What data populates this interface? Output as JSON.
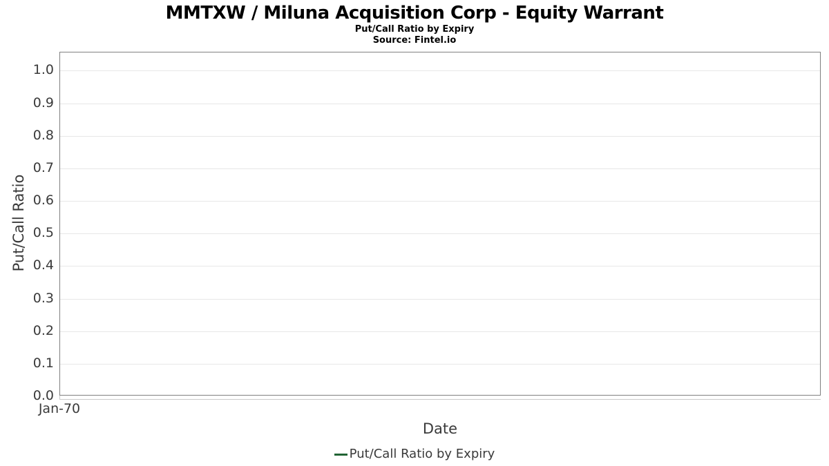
{
  "chart_data": {
    "type": "line",
    "title": "MMTXW / Miluna Acquisition Corp - Equity Warrant",
    "subtitle": "Put/Call Ratio by Expiry",
    "source": "Source: Fintel.io",
    "xlabel": "Date",
    "ylabel": "Put/Call Ratio",
    "x_tick_labels": [
      "Jan-70"
    ],
    "y_tick_labels": [
      "0.0",
      "0.1",
      "0.2",
      "0.3",
      "0.4",
      "0.5",
      "0.6",
      "0.7",
      "0.8",
      "0.9",
      "1.0"
    ],
    "y_tick_values": [
      0,
      0.1,
      0.2,
      0.3,
      0.4,
      0.5,
      0.6,
      0.7,
      0.8,
      0.9,
      1.0
    ],
    "ylim": [
      0,
      1.056
    ],
    "grid": true,
    "legend_position": "bottom",
    "series": [
      {
        "name": "Put/Call Ratio by Expiry",
        "color": "#216434",
        "x": [],
        "y": []
      }
    ]
  },
  "colors": {
    "plot_border": "#7f7f7f",
    "gridline": "#e7e7e7",
    "axis_baseline": "#c9c9c9",
    "tick_text": "#3a3a3a",
    "title_text": "#000000",
    "series_green": "#216434"
  }
}
